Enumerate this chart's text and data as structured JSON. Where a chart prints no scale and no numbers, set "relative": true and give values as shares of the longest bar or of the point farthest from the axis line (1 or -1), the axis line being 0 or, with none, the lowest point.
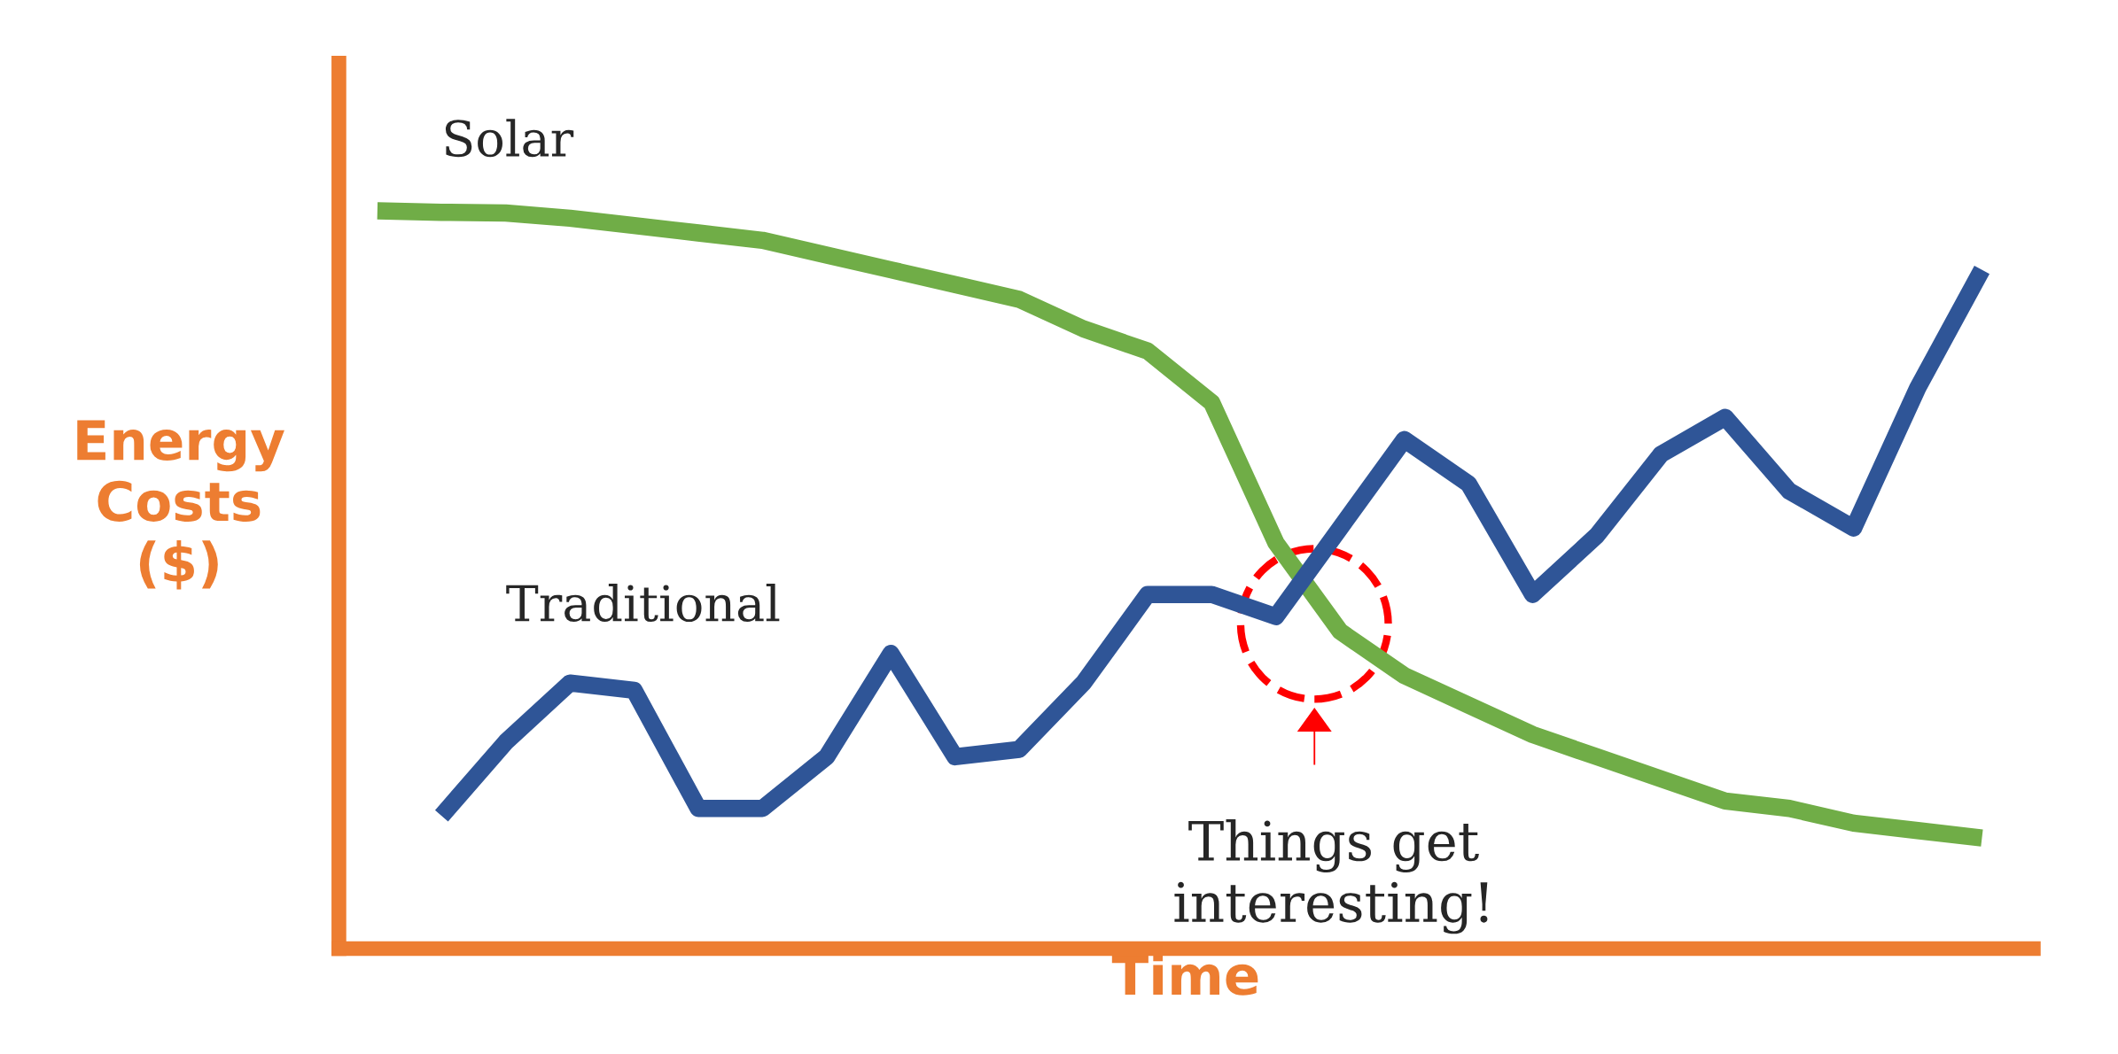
{
  "chart_data": {
    "type": "line",
    "relative": true,
    "xlabel": "Time",
    "ylabel": "Energy\nCosts\n($)",
    "categories": [
      null,
      null,
      null,
      null,
      null,
      null,
      null,
      null,
      null,
      null,
      null,
      null,
      null,
      null,
      null,
      null,
      null,
      null,
      null,
      null,
      null,
      null,
      null,
      null,
      null,
      null
    ],
    "series": [
      {
        "name": "Solar",
        "color": "#70ad47",
        "values": [
          1.0,
          0.998,
          0.997,
          0.99,
          0.98,
          0.97,
          0.96,
          0.94,
          0.92,
          0.9,
          0.88,
          0.84,
          0.81,
          0.74,
          0.55,
          0.43,
          0.37,
          0.33,
          0.29,
          0.26,
          0.23,
          0.2,
          0.19,
          0.17,
          0.16,
          0.15
        ]
      },
      {
        "name": "Traditional",
        "color": "#2f5597",
        "values": [
          null,
          0.18,
          0.28,
          0.36,
          0.35,
          0.19,
          0.19,
          0.26,
          0.4,
          0.26,
          0.27,
          0.36,
          0.48,
          0.48,
          0.45,
          0.57,
          0.69,
          0.63,
          0.48,
          0.56,
          0.67,
          0.72,
          0.62,
          0.57,
          0.76,
          0.92
        ]
      }
    ],
    "annotations": [
      "Things get\ninteresting!"
    ],
    "legend": false,
    "tick_labels": false,
    "marker": "none",
    "line_style": "solid"
  }
}
